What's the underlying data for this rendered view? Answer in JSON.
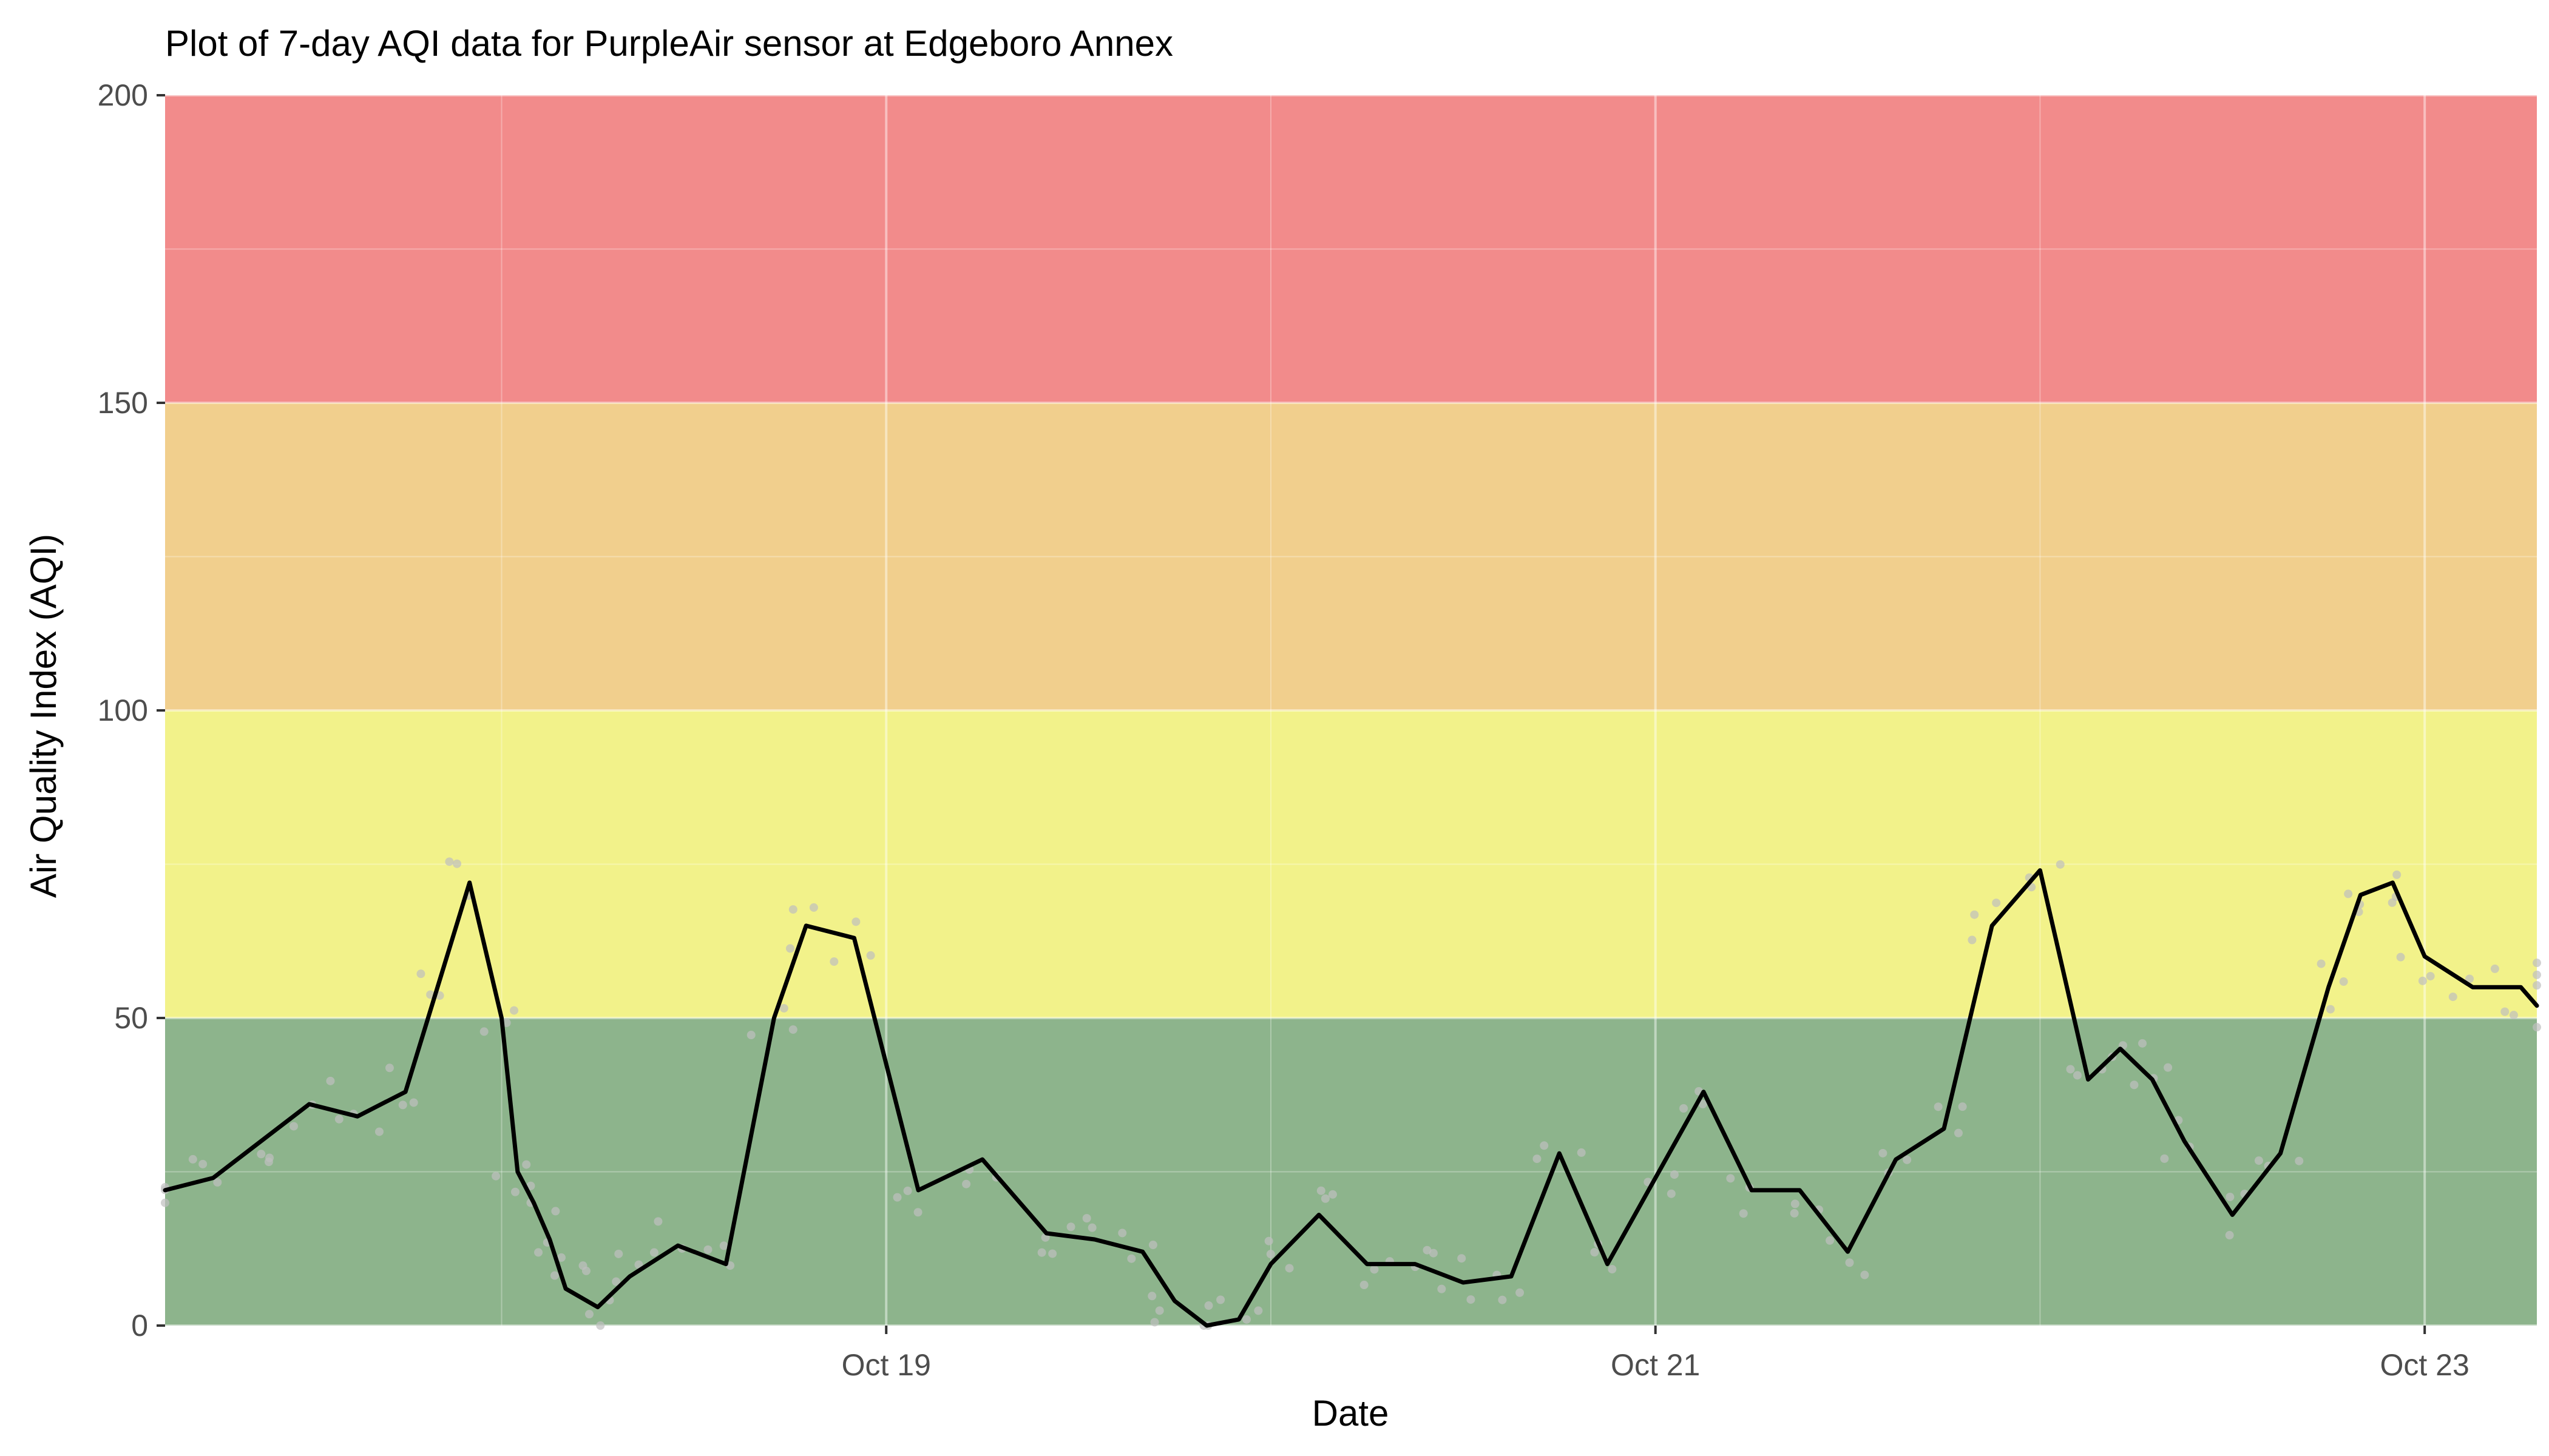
{
  "chart_data": {
    "type": "line",
    "title": "Plot of 7-day AQI data for PurpleAir sensor at Edgeboro Annex",
    "xlabel": "Date",
    "ylabel": "Air Quality Index (AQI)",
    "x_unit": "date",
    "xlim": [
      "Oct 17 03:00",
      "Oct 23 07:00"
    ],
    "ylim": [
      0,
      200
    ],
    "y_ticks": [
      0,
      50,
      100,
      150,
      200
    ],
    "x_ticks": [
      {
        "label": "Oct 19",
        "at": "Oct 19 00:00"
      },
      {
        "label": "Oct 21",
        "at": "Oct 21 00:00"
      },
      {
        "label": "Oct 23",
        "at": "Oct 23 00:00"
      }
    ],
    "grid": true,
    "legend": "none",
    "bands": [
      {
        "from": 0,
        "to": 50,
        "color": "#8db48c"
      },
      {
        "from": 50,
        "to": 100,
        "color": "#f2f28a"
      },
      {
        "from": 100,
        "to": 150,
        "color": "#f1cf8d"
      },
      {
        "from": 150,
        "to": 200,
        "color": "#f28b8b"
      }
    ],
    "line_color": "#000000",
    "point_color": "#bfbfbf",
    "series": [
      {
        "x": [
          "Oct 17 03:00",
          "Oct 17 06:00",
          "Oct 17 09:00",
          "Oct 17 12:00",
          "Oct 17 15:00",
          "Oct 17 18:00",
          "Oct 17 20:00",
          "Oct 17 22:00",
          "Oct 18 00:00",
          "Oct 18 01:00",
          "Oct 18 02:00",
          "Oct 18 03:00",
          "Oct 18 04:00",
          "Oct 18 06:00",
          "Oct 18 08:00",
          "Oct 18 11:00",
          "Oct 18 14:00",
          "Oct 18 17:00",
          "Oct 18 19:00",
          "Oct 18 22:00",
          "Oct 19 02:00",
          "Oct 19 06:00",
          "Oct 19 10:00",
          "Oct 19 13:00",
          "Oct 19 16:00",
          "Oct 19 18:00",
          "Oct 19 20:00",
          "Oct 19 22:00",
          "Oct 20 00:00",
          "Oct 20 03:00",
          "Oct 20 06:00",
          "Oct 20 09:00",
          "Oct 20 12:00",
          "Oct 20 15:00",
          "Oct 20 18:00",
          "Oct 20 21:00",
          "Oct 21 00:00",
          "Oct 21 03:00",
          "Oct 21 06:00",
          "Oct 21 09:00",
          "Oct 21 12:00",
          "Oct 21 15:00",
          "Oct 21 18:00",
          "Oct 21 21:00",
          "Oct 22 00:00",
          "Oct 22 03:00",
          "Oct 22 05:00",
          "Oct 22 07:00",
          "Oct 22 09:00",
          "Oct 22 12:00",
          "Oct 22 15:00",
          "Oct 22 18:00",
          "Oct 22 20:00",
          "Oct 22 22:00",
          "Oct 23 00:00",
          "Oct 23 03:00",
          "Oct 23 06:00",
          "Oct 23 07:00"
        ],
        "values": [
          22,
          24,
          30,
          36,
          34,
          38,
          55,
          72,
          50,
          25,
          20,
          14,
          6,
          3,
          8,
          13,
          10,
          50,
          65,
          63,
          22,
          27,
          15,
          14,
          12,
          4,
          0,
          1,
          10,
          18,
          10,
          10,
          7,
          8,
          28,
          10,
          24,
          38,
          22,
          22,
          12,
          27,
          32,
          65,
          74,
          40,
          45,
          40,
          30,
          18,
          28,
          55,
          70,
          72,
          60,
          55,
          55,
          52
        ]
      }
    ]
  }
}
